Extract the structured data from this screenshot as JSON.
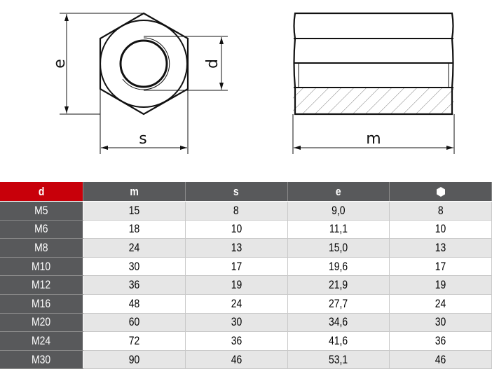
{
  "drawing": {
    "labels": {
      "e": "e",
      "d": "d",
      "s": "s",
      "m": "m"
    }
  },
  "table": {
    "header_color": "#c8000a",
    "columns": [
      "d",
      "m",
      "s",
      "e",
      "hexagon-icon"
    ],
    "rows": [
      [
        "M5",
        "15",
        "8",
        "9,0",
        "8"
      ],
      [
        "M6",
        "18",
        "10",
        "11,1",
        "10"
      ],
      [
        "M8",
        "24",
        "13",
        "15,0",
        "13"
      ],
      [
        "M10",
        "30",
        "17",
        "19,6",
        "17"
      ],
      [
        "M12",
        "36",
        "19",
        "21,9",
        "19"
      ],
      [
        "M16",
        "48",
        "24",
        "27,7",
        "24"
      ],
      [
        "M20",
        "60",
        "30",
        "34,6",
        "30"
      ],
      [
        "M24",
        "72",
        "36",
        "41,6",
        "36"
      ],
      [
        "M30",
        "90",
        "46",
        "53,1",
        "46"
      ]
    ]
  }
}
